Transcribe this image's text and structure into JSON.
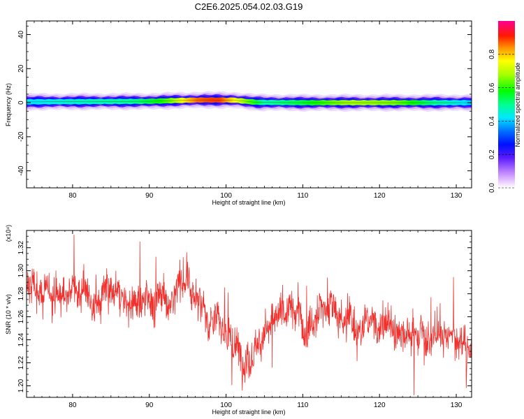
{
  "title": "C2E6.2025.054.02.03.G19",
  "colors": {
    "snr_line": "#f0302c",
    "frame": "#000000"
  },
  "chart_data": [
    {
      "type": "heatmap",
      "xlabel": "Height of straight line (km)",
      "ylabel": "Frequency (Hz)",
      "xlim": [
        74,
        132
      ],
      "ylim": [
        -50,
        48
      ],
      "xticks": [
        80,
        90,
        100,
        110,
        120,
        130
      ],
      "yticks": [
        40,
        20,
        0,
        -20,
        -40
      ],
      "colorbar": {
        "label": "Normalized spectral amplitude",
        "range": [
          0,
          1
        ],
        "ticks": [
          "0.0",
          "0.2",
          "0.4",
          "0.6",
          "0.8"
        ]
      },
      "band_center_hz": [
        {
          "x": 74,
          "y": 0.5
        },
        {
          "x": 80,
          "y": 0.6
        },
        {
          "x": 90,
          "y": 0.8
        },
        {
          "x": 93,
          "y": 1.2
        },
        {
          "x": 97,
          "y": 1.6
        },
        {
          "x": 101,
          "y": 1.5
        },
        {
          "x": 104,
          "y": 0.2
        },
        {
          "x": 110,
          "y": 0.0
        },
        {
          "x": 120,
          "y": 0.0
        },
        {
          "x": 132,
          "y": 0.0
        }
      ],
      "band_peak_amplitude": [
        {
          "x": 74,
          "y": 0.42
        },
        {
          "x": 80,
          "y": 0.46
        },
        {
          "x": 88,
          "y": 0.5
        },
        {
          "x": 92,
          "y": 0.6
        },
        {
          "x": 96,
          "y": 0.86
        },
        {
          "x": 99,
          "y": 0.9
        },
        {
          "x": 102,
          "y": 0.7
        },
        {
          "x": 105,
          "y": 0.48
        },
        {
          "x": 110,
          "y": 0.55
        },
        {
          "x": 116,
          "y": 0.68
        },
        {
          "x": 122,
          "y": 0.65
        },
        {
          "x": 127,
          "y": 0.5
        },
        {
          "x": 132,
          "y": 0.4
        }
      ]
    },
    {
      "type": "line",
      "xlabel": "Height of straight line (km)",
      "ylabel": "SNR (10 * v/v)",
      "y_multiplier": "(x10⁴)",
      "xlim": [
        74,
        132
      ],
      "ylim": [
        1.19,
        1.335
      ],
      "xticks": [
        80,
        90,
        100,
        110,
        120,
        130
      ],
      "yticks": [
        "1.20",
        "1.22",
        "1.24",
        "1.26",
        "1.28",
        "1.30",
        "1.32"
      ],
      "trend": [
        {
          "x": 74,
          "y": 1.282
        },
        {
          "x": 78,
          "y": 1.279
        },
        {
          "x": 82,
          "y": 1.281
        },
        {
          "x": 85,
          "y": 1.276
        },
        {
          "x": 88,
          "y": 1.27
        },
        {
          "x": 91,
          "y": 1.284
        },
        {
          "x": 94,
          "y": 1.287
        },
        {
          "x": 96,
          "y": 1.28
        },
        {
          "x": 98,
          "y": 1.262
        },
        {
          "x": 100,
          "y": 1.25
        },
        {
          "x": 102,
          "y": 1.232
        },
        {
          "x": 103.5,
          "y": 1.228
        },
        {
          "x": 105,
          "y": 1.25
        },
        {
          "x": 108,
          "y": 1.26
        },
        {
          "x": 110,
          "y": 1.252
        },
        {
          "x": 112,
          "y": 1.262
        },
        {
          "x": 114,
          "y": 1.268
        },
        {
          "x": 116,
          "y": 1.255
        },
        {
          "x": 118,
          "y": 1.258
        },
        {
          "x": 120,
          "y": 1.255
        },
        {
          "x": 123,
          "y": 1.25
        },
        {
          "x": 126,
          "y": 1.245
        },
        {
          "x": 129,
          "y": 1.238
        },
        {
          "x": 132,
          "y": 1.24
        }
      ],
      "noise_amplitude": 0.014,
      "samples": 1500
    }
  ]
}
